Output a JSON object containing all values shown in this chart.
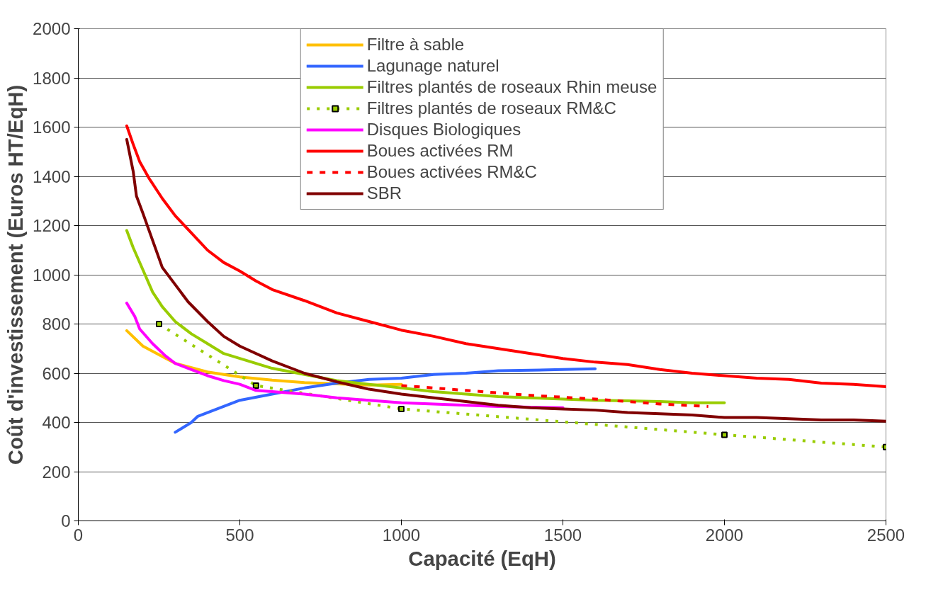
{
  "chart_data": {
    "type": "line",
    "xlabel": "Capacité (EqH)",
    "ylabel": "Coût d'investissement (Euros HT/EqH)",
    "xlim": [
      0,
      2500
    ],
    "xticks": [
      0,
      500,
      1000,
      1500,
      2000,
      2500
    ],
    "ylim": [
      0,
      2000
    ],
    "yticks": [
      0,
      200,
      400,
      600,
      800,
      1000,
      1200,
      1400,
      1600,
      1800,
      2000
    ],
    "grid": "y",
    "legend": "top",
    "marker": "none",
    "line_style": "solid",
    "series": [
      {
        "name": "Filtre à sable",
        "color": "#ffc000",
        "x": [
          150,
          200,
          300,
          400,
          500,
          600,
          700,
          800,
          900,
          1000
        ],
        "values": [
          773,
          710,
          640,
          605,
          585,
          572,
          562,
          557,
          552,
          555
        ]
      },
      {
        "name": "Lagunage naturel",
        "color": "#3366ff",
        "x": [
          300,
          350,
          370,
          450,
          500,
          600,
          700,
          800,
          900,
          1000,
          1100,
          1200,
          1300,
          1400,
          1500,
          1600
        ],
        "values": [
          360,
          400,
          425,
          465,
          490,
          515,
          540,
          560,
          575,
          580,
          595,
          600,
          610,
          612,
          615,
          618
        ]
      },
      {
        "name": "Filtres plantés de roseaux Rhin meuse",
        "color": "#99cc00",
        "x": [
          150,
          170,
          200,
          230,
          260,
          300,
          350,
          400,
          450,
          500,
          600,
          700,
          800,
          900,
          1000,
          1100,
          1200,
          1300,
          1400,
          1500,
          1600,
          1700,
          1800,
          1900,
          2000
        ],
        "values": [
          1180,
          1110,
          1020,
          930,
          870,
          810,
          760,
          720,
          680,
          660,
          620,
          595,
          570,
          555,
          540,
          525,
          515,
          505,
          500,
          495,
          490,
          488,
          485,
          480,
          480
        ]
      },
      {
        "name": "Filtres plantés de roseaux RM&C",
        "color": "#99cc00",
        "line_style": "dotted",
        "marker": "square",
        "x": [
          250,
          550,
          1000,
          2000,
          2500
        ],
        "values": [
          800,
          550,
          455,
          350,
          300
        ]
      },
      {
        "name": "Disques Biologiques",
        "color": "#ff00ff",
        "x": [
          150,
          175,
          190,
          230,
          270,
          300,
          350,
          400,
          450,
          500,
          550,
          600,
          700,
          800,
          900,
          1000,
          1100,
          1200,
          1300,
          1400,
          1500
        ],
        "values": [
          885,
          830,
          780,
          720,
          670,
          640,
          615,
          590,
          570,
          555,
          530,
          525,
          515,
          500,
          490,
          480,
          475,
          470,
          465,
          462,
          460
        ]
      },
      {
        "name": "Boues activées RM",
        "color": "#ff0000",
        "x": [
          150,
          170,
          190,
          220,
          260,
          300,
          350,
          400,
          450,
          500,
          550,
          600,
          700,
          800,
          900,
          1000,
          1100,
          1200,
          1300,
          1400,
          1500,
          1600,
          1700,
          1800,
          1900,
          2000,
          2100,
          2200,
          2300,
          2400,
          2500
        ],
        "values": [
          1605,
          1530,
          1460,
          1390,
          1310,
          1240,
          1170,
          1100,
          1050,
          1015,
          975,
          940,
          895,
          845,
          810,
          775,
          750,
          720,
          700,
          680,
          660,
          645,
          635,
          615,
          600,
          590,
          580,
          575,
          560,
          555,
          545
        ]
      },
      {
        "name": "Boues activées RM&C",
        "color": "#ff0000",
        "line_style": "dashed",
        "x": [
          1000,
          1200,
          1400,
          1600,
          1800,
          1950
        ],
        "values": [
          550,
          530,
          510,
          495,
          475,
          465
        ]
      },
      {
        "name": "SBR",
        "color": "#800000",
        "x": [
          150,
          170,
          180,
          200,
          230,
          260,
          300,
          340,
          400,
          450,
          500,
          600,
          700,
          800,
          900,
          1000,
          1100,
          1200,
          1300,
          1400,
          1500,
          1600,
          1700,
          1800,
          1900,
          2000,
          2100,
          2200,
          2300,
          2400,
          2500
        ],
        "values": [
          1550,
          1420,
          1320,
          1250,
          1140,
          1030,
          960,
          890,
          810,
          750,
          710,
          650,
          600,
          565,
          535,
          515,
          500,
          485,
          470,
          460,
          455,
          450,
          440,
          435,
          430,
          420,
          420,
          415,
          410,
          410,
          405
        ]
      }
    ]
  }
}
